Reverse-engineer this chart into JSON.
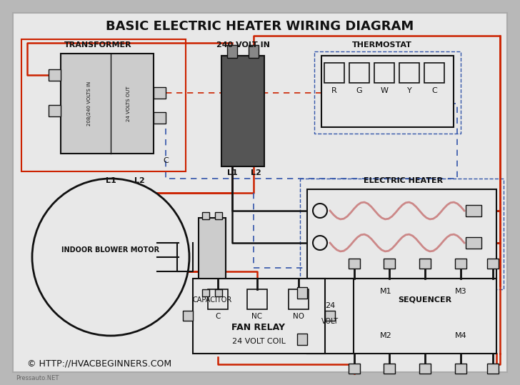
{
  "title": "BASIC ELECTRIC HEATER WIRING DIAGRAM",
  "bg_outer": "#b8b8b8",
  "bg_inner": "#e8e8e8",
  "colors": {
    "red": "#cc2200",
    "blue": "#3355aa",
    "black": "#111111",
    "dark_gray": "#555555",
    "mid_gray": "#888888",
    "light_gray": "#cccccc",
    "white": "#ffffff"
  },
  "copyright": "© HTTP://HVACBEGINNERS.COM",
  "watermark": "Pressauto.NET"
}
